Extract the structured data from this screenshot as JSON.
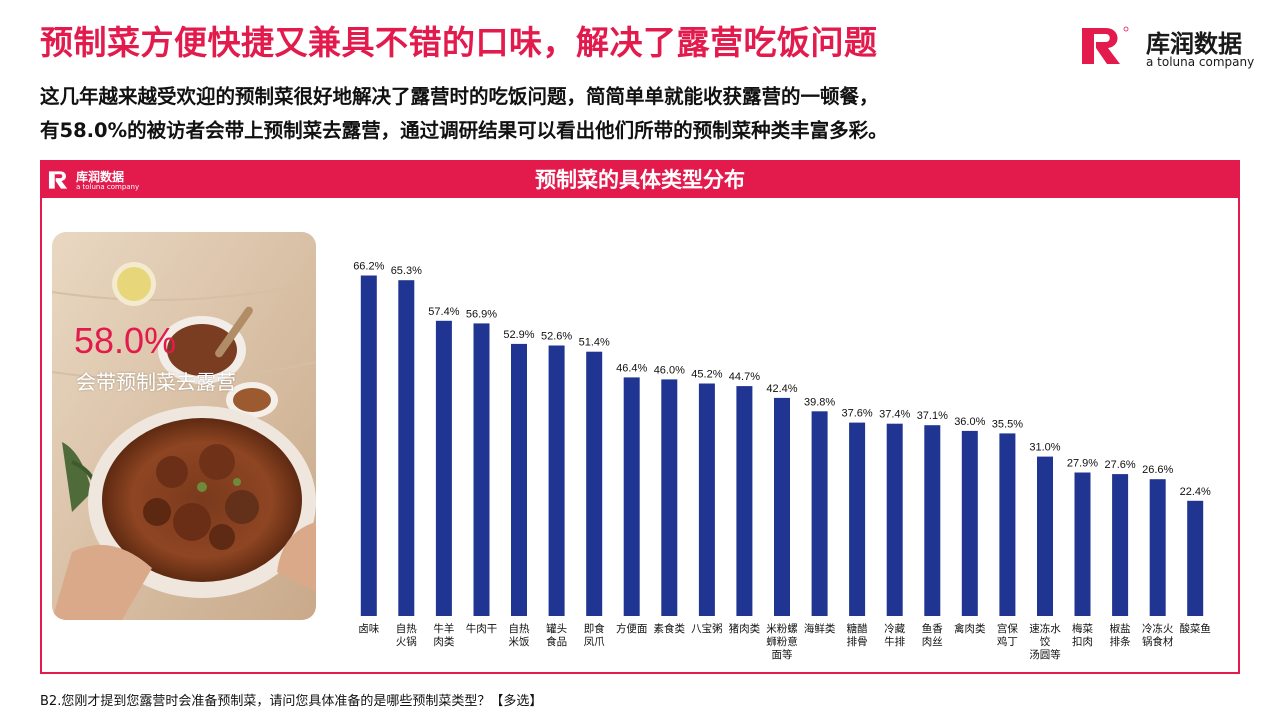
{
  "headline": "预制菜方便快捷又兼具不错的口味，解决了露营吃饭问题",
  "intro": {
    "line1": "这几年越来越受欢迎的预制菜很好地解决了露营时的吃饭问题，简简单单就能收获露营的一顿餐，",
    "line2": "有58.0%的被访者会带上预制菜去露营，通过调研结果可以看出他们所带的预制菜种类丰富多彩。"
  },
  "brand": {
    "name": "库润数据",
    "sub": "a toluna company",
    "color": "#e31b4d"
  },
  "panel": {
    "title": "预制菜的具体类型分布",
    "logo_name": "库润数据",
    "logo_sub": "a toluna company"
  },
  "highlight": {
    "value": "58.0%",
    "label": "会带预制菜去露营"
  },
  "chart_data": {
    "type": "bar",
    "title": "预制菜的具体类型分布",
    "xlabel": "",
    "ylabel": "",
    "ylim": [
      0,
      70
    ],
    "grid": false,
    "bar_color": "#1f3591",
    "categories": [
      [
        "卤味"
      ],
      [
        "自热",
        "火锅"
      ],
      [
        "牛羊",
        "肉类"
      ],
      [
        "牛肉干"
      ],
      [
        "自热",
        "米饭"
      ],
      [
        "罐头",
        "食品"
      ],
      [
        "即食",
        "凤爪"
      ],
      [
        "方便面"
      ],
      [
        "素食类"
      ],
      [
        "八宝粥"
      ],
      [
        "猪肉类"
      ],
      [
        "米粉螺",
        "蛳粉意",
        "面等"
      ],
      [
        "海鲜类"
      ],
      [
        "糖醋",
        "排骨"
      ],
      [
        "冷藏",
        "牛排"
      ],
      [
        "鱼香",
        "肉丝"
      ],
      [
        "禽肉类"
      ],
      [
        "宫保",
        "鸡丁"
      ],
      [
        "速冻水",
        "饺",
        "汤圆等"
      ],
      [
        "梅菜",
        "扣肉"
      ],
      [
        "椒盐",
        "排条"
      ],
      [
        "冷冻火",
        "锅食材"
      ],
      [
        "酸菜鱼"
      ]
    ],
    "values": [
      66.2,
      65.3,
      57.4,
      56.9,
      52.9,
      52.6,
      51.4,
      46.4,
      46.0,
      45.2,
      44.7,
      42.4,
      39.8,
      37.6,
      37.4,
      37.1,
      36.0,
      35.5,
      31.0,
      27.9,
      27.6,
      26.6,
      22.4
    ],
    "value_labels": [
      "66.2%",
      "65.3%",
      "57.4%",
      "56.9%",
      "52.9%",
      "52.6%",
      "51.4%",
      "46.4%",
      "46.0%",
      "45.2%",
      "44.7%",
      "42.4%",
      "39.8%",
      "37.6%",
      "37.4%",
      "37.1%",
      "36.0%",
      "35.5%",
      "31.0%",
      "27.9%",
      "27.6%",
      "26.6%",
      "22.4%"
    ]
  },
  "footnote": "B2.您刚才提到您露营时会准备预制菜，请问您具体准备的是哪些预制菜类型？【多选】"
}
